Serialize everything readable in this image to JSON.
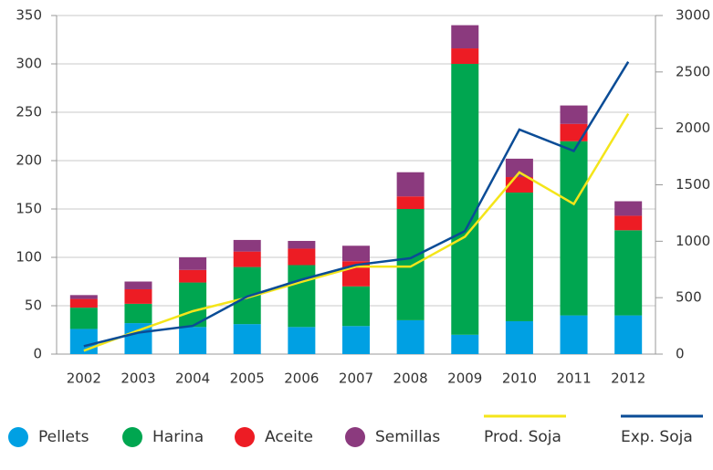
{
  "chart_data": {
    "type": "bar",
    "stacked": true,
    "categories": [
      "2002",
      "2003",
      "2004",
      "2005",
      "2006",
      "2007",
      "2008",
      "2009",
      "2010",
      "2011",
      "2012"
    ],
    "series": [
      {
        "name": "Pellets",
        "color": "#00a0e3",
        "values": [
          26,
          32,
          28,
          31,
          28,
          29,
          35,
          20,
          34,
          40,
          40
        ]
      },
      {
        "name": "Harina",
        "color": "#00a650",
        "values": [
          22,
          20,
          46,
          59,
          64,
          41,
          115,
          280,
          133,
          180,
          88
        ]
      },
      {
        "name": "Aceite",
        "color": "#ed1c24",
        "values": [
          9,
          15,
          13,
          16,
          17,
          26,
          13,
          16,
          16,
          18,
          15
        ]
      },
      {
        "name": "Semillas",
        "color": "#8b3a7e",
        "values": [
          4,
          8,
          13,
          12,
          8,
          16,
          25,
          24,
          19,
          19,
          15
        ]
      },
      {
        "name": "Prod. Soja",
        "color": "#f4e51a",
        "type": "line",
        "axis": "y2",
        "values": [
          30,
          210,
          380,
          500,
          640,
          775,
          775,
          1040,
          1610,
          1330,
          2130
        ]
      },
      {
        "name": "Exp. Soja",
        "color": "#0a4c96",
        "type": "line",
        "axis": "y2",
        "values": [
          70,
          190,
          250,
          510,
          660,
          790,
          850,
          1090,
          1990,
          1800,
          2590
        ]
      }
    ],
    "ylim": [
      0,
      350
    ],
    "yticks": [
      0,
      50,
      100,
      150,
      200,
      250,
      300,
      350
    ],
    "y2lim": [
      0,
      3000
    ],
    "y2ticks": [
      0,
      500,
      1000,
      1500,
      2000,
      2500,
      3000
    ],
    "grid": true,
    "legend": "bottom"
  }
}
